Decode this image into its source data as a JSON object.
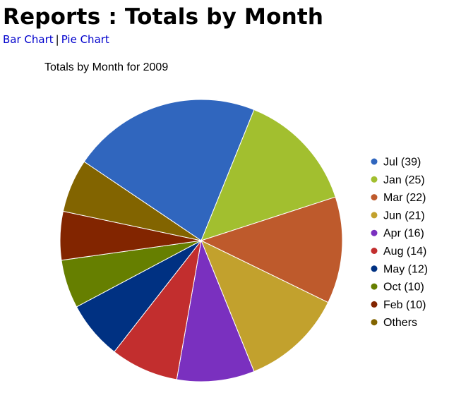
{
  "page": {
    "title": "Reports : Totals by Month"
  },
  "nav": {
    "links": [
      {
        "label": "Bar Chart"
      },
      {
        "label": "Pie Chart"
      }
    ],
    "separator": "|"
  },
  "chart_data": {
    "type": "pie",
    "title": "Totals by Month for 2009",
    "legend_position": "right",
    "slices": [
      {
        "label": "Jul (39)",
        "value": 39,
        "color": "#3066be"
      },
      {
        "label": "Jan (25)",
        "value": 25,
        "color": "#a2bf2f"
      },
      {
        "label": "Mar (22)",
        "value": 22,
        "color": "#be5a2c"
      },
      {
        "label": "Jun (21)",
        "value": 21,
        "color": "#c2a12d"
      },
      {
        "label": "Apr (16)",
        "value": 16,
        "color": "#7a30bf"
      },
      {
        "label": "Aug (14)",
        "value": 14,
        "color": "#c22e2e"
      },
      {
        "label": "May (12)",
        "value": 12,
        "color": "#003182"
      },
      {
        "label": "Oct (10)",
        "value": 10,
        "color": "#667f00"
      },
      {
        "label": "Feb (10)",
        "value": 10,
        "color": "#822500"
      },
      {
        "label": "Others",
        "value": 11,
        "color": "#826400"
      }
    ]
  }
}
